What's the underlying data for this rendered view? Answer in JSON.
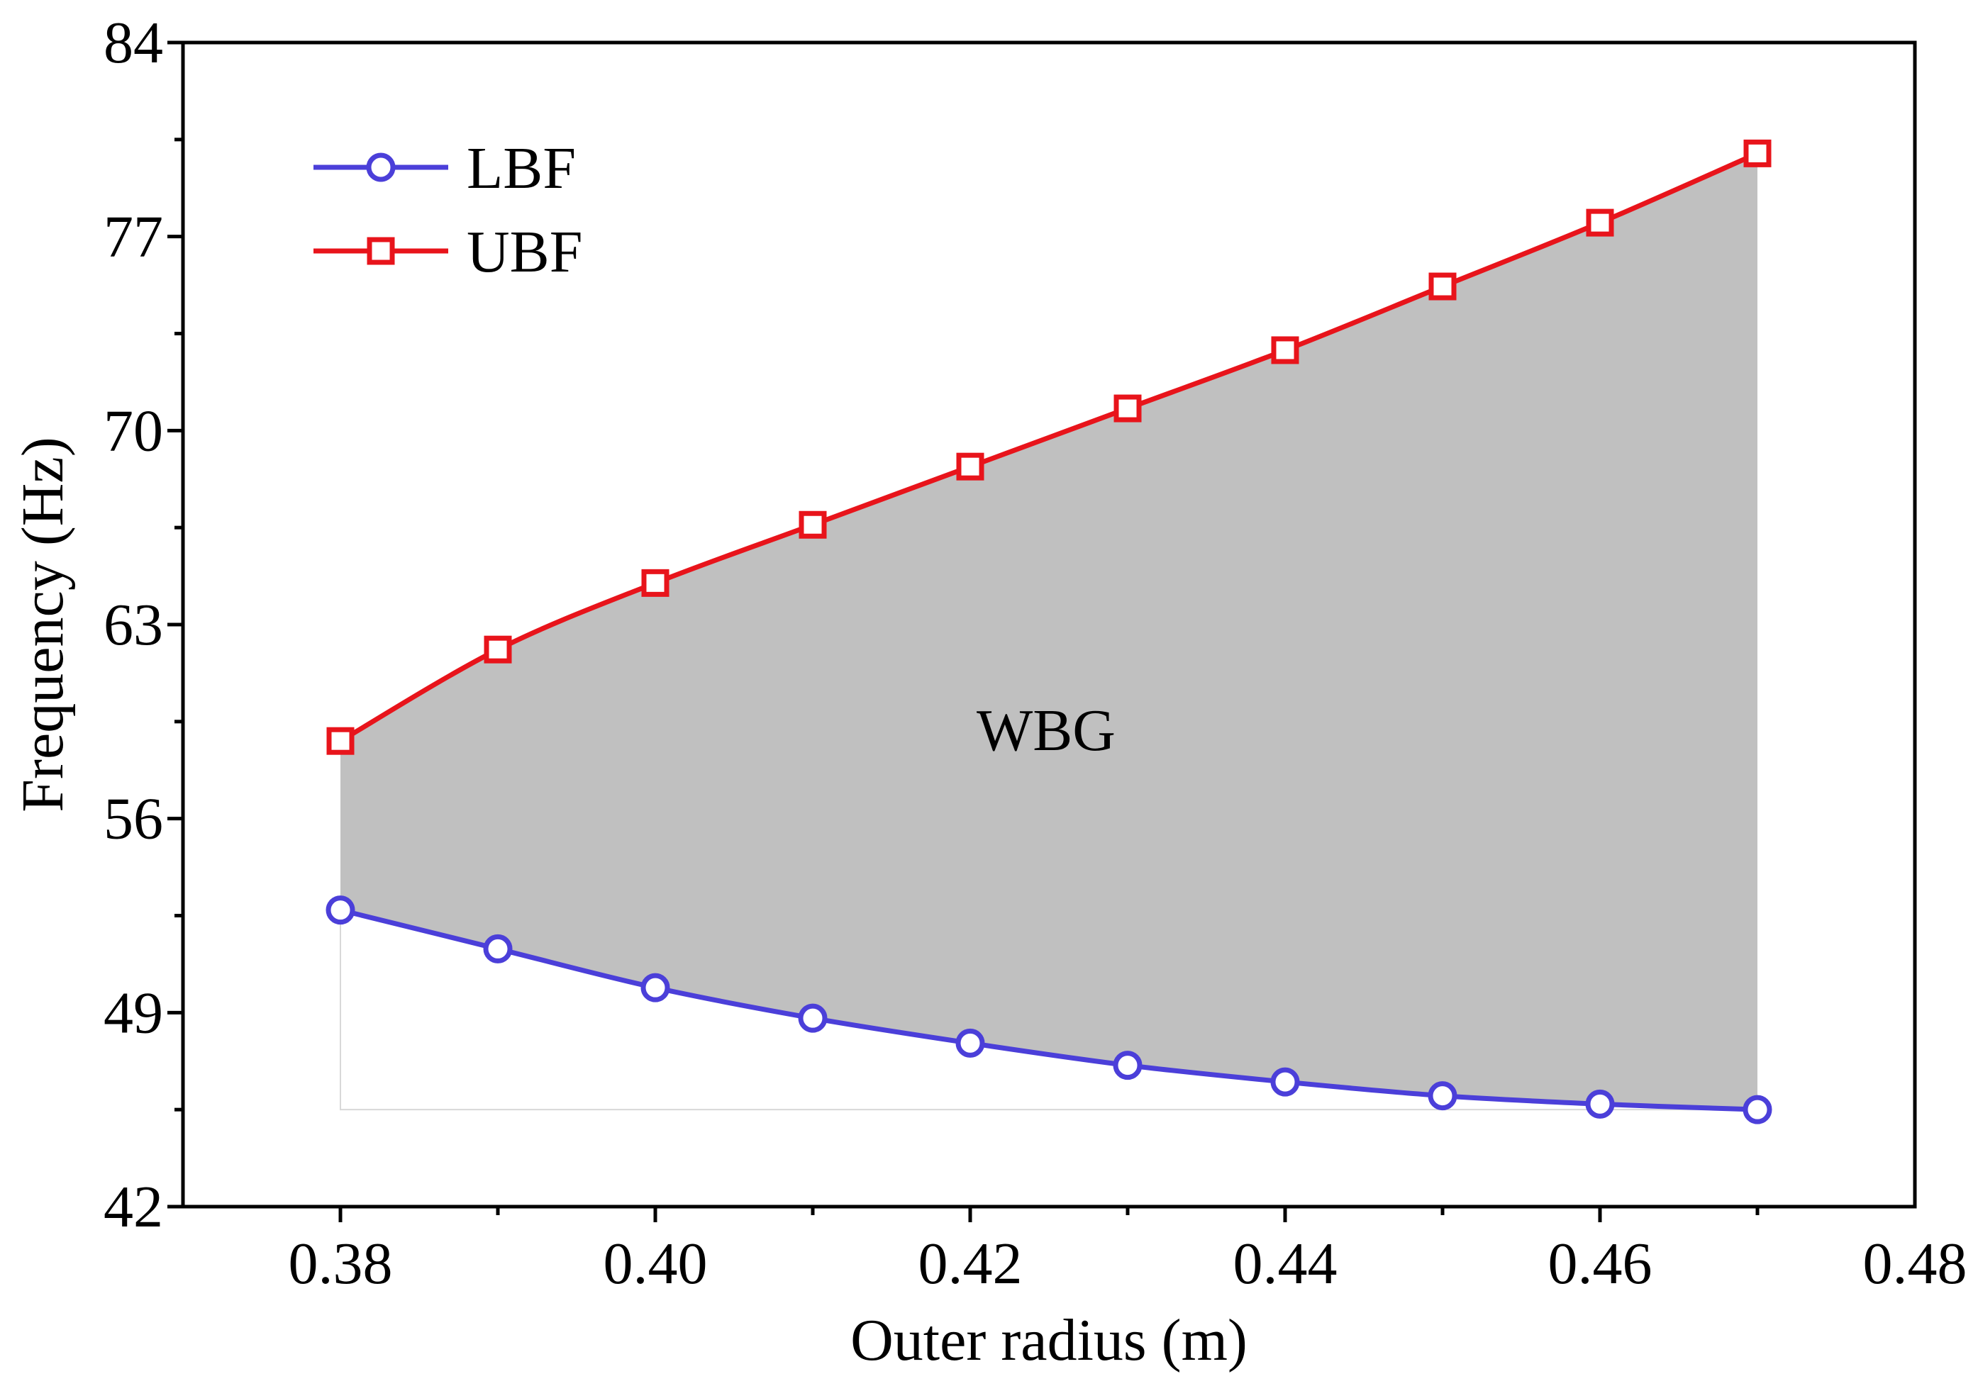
{
  "chart_data": {
    "type": "line",
    "title": "",
    "xlabel": "Outer radius (m)",
    "ylabel": "Frequency (Hz)",
    "xlim": [
      0.37,
      0.48
    ],
    "ylim": [
      42,
      84
    ],
    "xticks": [
      0.38,
      0.4,
      0.42,
      0.44,
      0.46,
      0.48
    ],
    "xtick_labels": [
      "0.38",
      "0.40",
      "0.42",
      "0.44",
      "0.46",
      "0.48"
    ],
    "yticks": [
      42,
      49,
      56,
      63,
      70,
      77,
      84
    ],
    "ytick_labels": [
      "42",
      "49",
      "56",
      "63",
      "70",
      "77",
      "84"
    ],
    "x": [
      0.38,
      0.39,
      0.4,
      0.41,
      0.42,
      0.43,
      0.44,
      0.45,
      0.46,
      0.47
    ],
    "series": [
      {
        "name": "LBF",
        "color": "#4B3FD9",
        "marker": "circle",
        "values": [
          52.7,
          51.3,
          49.9,
          48.8,
          47.9,
          47.1,
          46.5,
          46.0,
          45.7,
          45.5
        ]
      },
      {
        "name": "UBF",
        "color": "#E8141B",
        "marker": "square",
        "values": [
          58.8,
          62.1,
          64.5,
          66.6,
          68.7,
          70.8,
          72.9,
          75.2,
          77.5,
          80.0
        ]
      }
    ],
    "fill_region": {
      "label": "WBG",
      "color": "#C0C0C0",
      "between": [
        "LBF",
        "UBF"
      ]
    },
    "legend": {
      "position": "top-left"
    },
    "grid": false
  }
}
